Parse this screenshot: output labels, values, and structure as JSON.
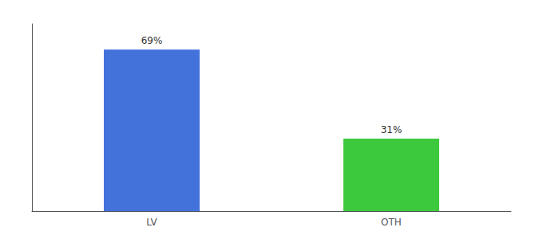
{
  "chart_data": {
    "type": "bar",
    "categories": [
      "LV",
      "OTH"
    ],
    "values": [
      69,
      31
    ],
    "value_labels": [
      "69%",
      "31%"
    ],
    "colors": [
      "#4472db",
      "#3dc93d"
    ],
    "ylim": [
      0,
      80
    ],
    "data_labels": true,
    "tick_labels": "x",
    "grid": false
  }
}
